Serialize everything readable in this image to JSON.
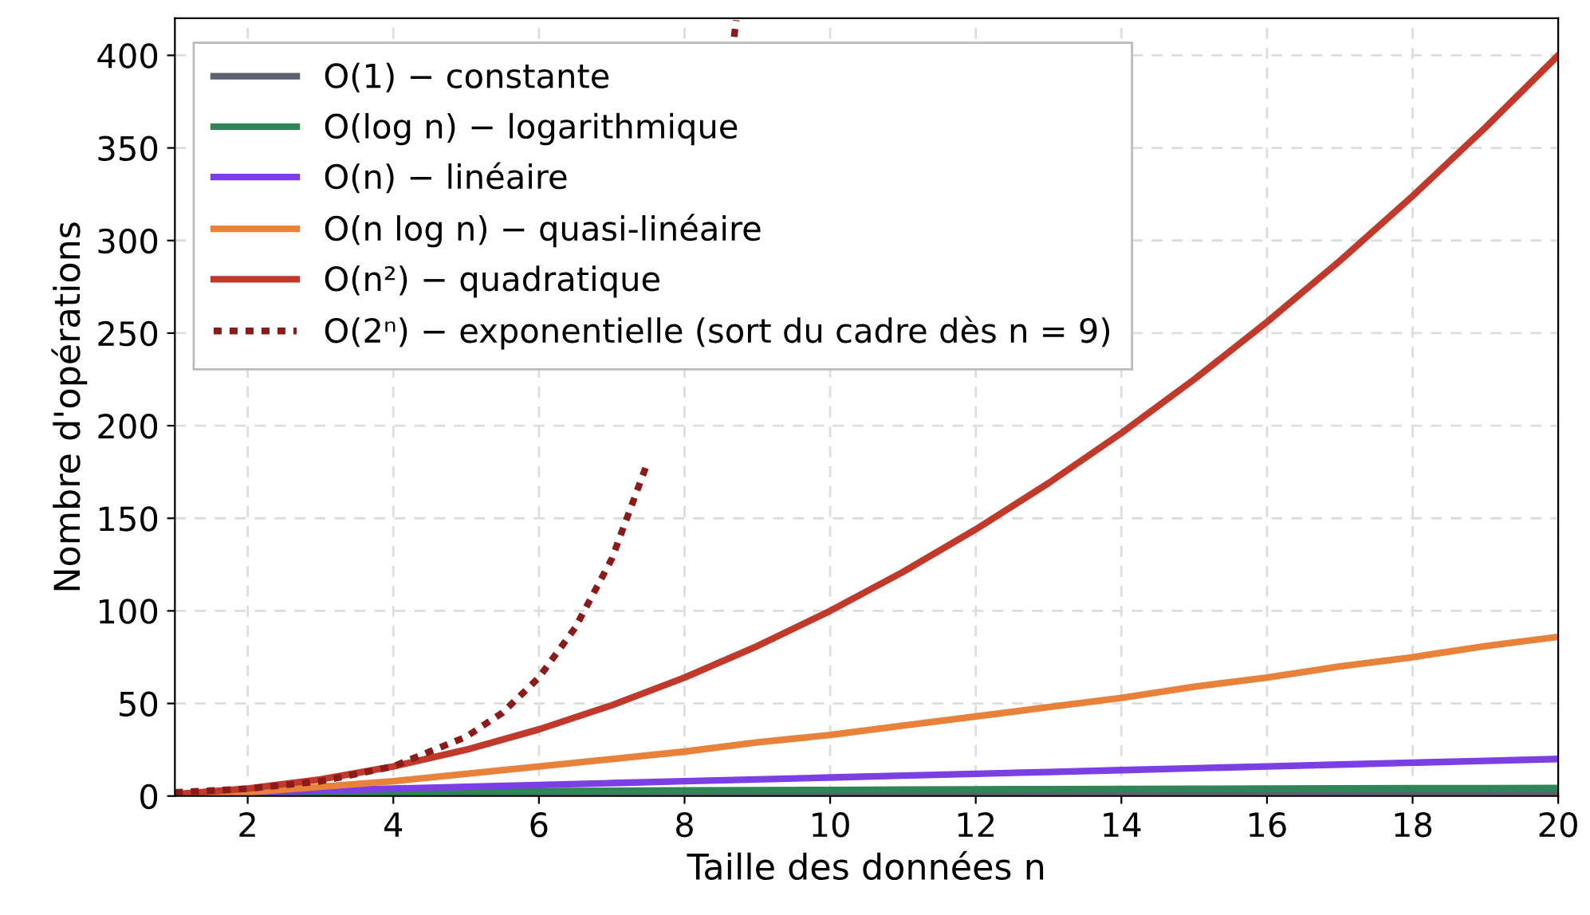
{
  "chart_data": {
    "type": "line",
    "xlabel": "Taille des données n",
    "ylabel": "Nombre d'opérations",
    "x": [
      1,
      2,
      3,
      4,
      5,
      6,
      7,
      8,
      9,
      10,
      11,
      12,
      13,
      14,
      15,
      16,
      17,
      18,
      19,
      20
    ],
    "series": [
      {
        "name": "O(1) − constante",
        "color": "#5b6170",
        "values": [
          1,
          1,
          1,
          1,
          1,
          1,
          1,
          1,
          1,
          1,
          1,
          1,
          1,
          1,
          1,
          1,
          1,
          1,
          1,
          1
        ]
      },
      {
        "name": "O(log n) − logarithmique",
        "color": "#2e8555",
        "values": [
          0,
          1,
          1.6,
          2,
          2.3,
          2.6,
          2.8,
          3,
          3.2,
          3.3,
          3.5,
          3.6,
          3.7,
          3.8,
          3.9,
          4,
          4.1,
          4.2,
          4.2,
          4.3
        ]
      },
      {
        "name": "O(n) − linéaire",
        "color": "#7b3fe4",
        "values": [
          1,
          2,
          3,
          4,
          5,
          6,
          7,
          8,
          9,
          10,
          11,
          12,
          13,
          14,
          15,
          16,
          17,
          18,
          19,
          20
        ]
      },
      {
        "name": "O(n log n) − quasi-linéaire",
        "color": "#e8813a",
        "values": [
          0,
          2,
          5,
          8,
          12,
          16,
          20,
          24,
          29,
          33,
          38,
          43,
          48,
          53,
          59,
          64,
          70,
          75,
          81,
          86
        ]
      },
      {
        "name": "O(n²) − quadratique",
        "color": "#c0392b",
        "values": [
          1,
          4,
          9,
          16,
          25,
          36,
          49,
          64,
          81,
          100,
          121,
          144,
          169,
          196,
          225,
          256,
          289,
          324,
          361,
          400
        ]
      },
      {
        "name": "O(2ⁿ) − exponentielle (sort du cadre dès n = 9)",
        "color": "#8b1a1a",
        "line_style": "dotted",
        "x": [
          1,
          2,
          3,
          4,
          5,
          5.5,
          6,
          6.5,
          7,
          7.5,
          8,
          8.5,
          8.68,
          8.71
        ],
        "values": [
          2,
          4,
          8,
          16,
          32,
          45,
          64,
          91,
          128,
          181,
          null,
          null,
          410,
          419
        ]
      }
    ],
    "xlim": [
      1,
      20
    ],
    "xticks": [
      2,
      4,
      6,
      8,
      10,
      12,
      14,
      16,
      18,
      20
    ],
    "ylim": [
      0,
      420
    ],
    "yticks": [
      0,
      50,
      100,
      150,
      200,
      250,
      300,
      350,
      400
    ],
    "grid": true,
    "legend": "top left",
    "line_style": "solid",
    "marker": "none"
  }
}
